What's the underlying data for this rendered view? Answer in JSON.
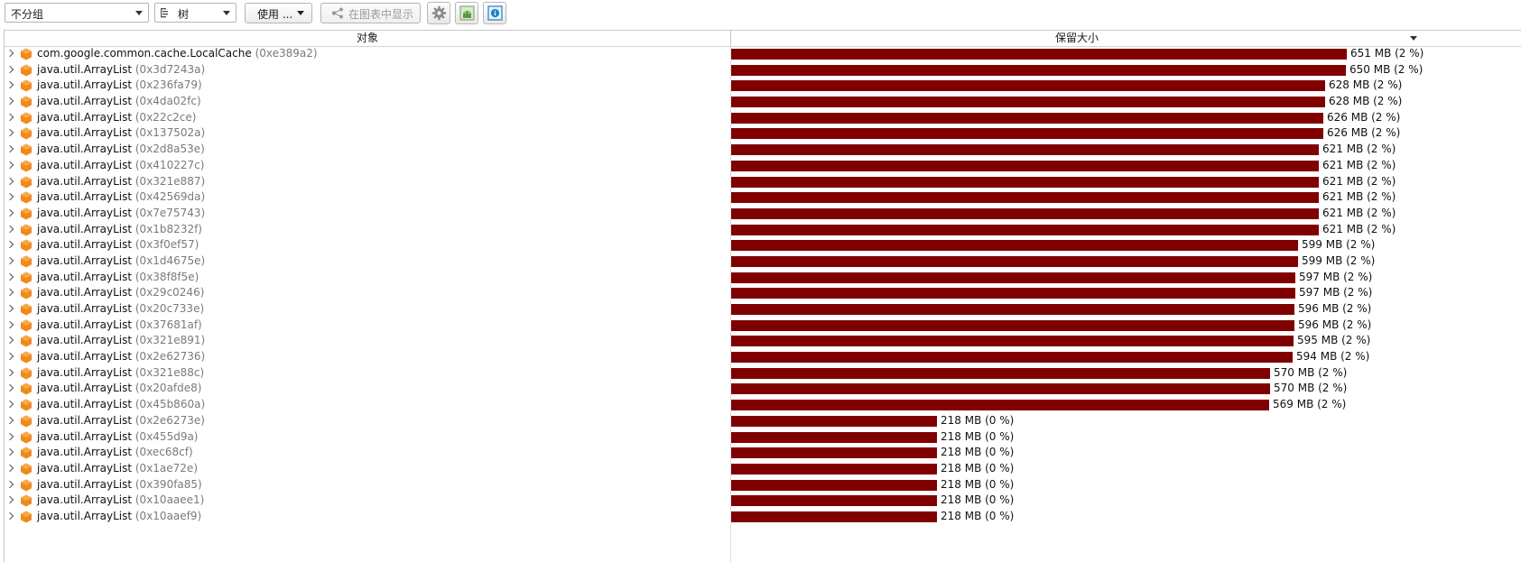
{
  "toolbar": {
    "grouping": "不分组",
    "view": "树",
    "usage": "使用 ...",
    "show_in_graph": "在图表中显示",
    "settings_icon": "gear-icon",
    "android_icon": "android-icon",
    "info_icon": "info-icon"
  },
  "table": {
    "col_object": "对象",
    "col_retained": "保留大小",
    "max_mb": 651,
    "rows": [
      {
        "cls": "com.google.common.cache.LocalCache",
        "addr": "(0xe389a2)",
        "mb": 651,
        "size": "651 MB (2 %)"
      },
      {
        "cls": "java.util.ArrayList",
        "addr": "(0x3d7243a)",
        "mb": 650,
        "size": "650 MB (2 %)"
      },
      {
        "cls": "java.util.ArrayList",
        "addr": "(0x236fa79)",
        "mb": 628,
        "size": "628 MB (2 %)"
      },
      {
        "cls": "java.util.ArrayList",
        "addr": "(0x4da02fc)",
        "mb": 628,
        "size": "628 MB (2 %)"
      },
      {
        "cls": "java.util.ArrayList",
        "addr": "(0x22c2ce)",
        "mb": 626,
        "size": "626 MB (2 %)"
      },
      {
        "cls": "java.util.ArrayList",
        "addr": "(0x137502a)",
        "mb": 626,
        "size": "626 MB (2 %)"
      },
      {
        "cls": "java.util.ArrayList",
        "addr": "(0x2d8a53e)",
        "mb": 621,
        "size": "621 MB (2 %)"
      },
      {
        "cls": "java.util.ArrayList",
        "addr": "(0x410227c)",
        "mb": 621,
        "size": "621 MB (2 %)"
      },
      {
        "cls": "java.util.ArrayList",
        "addr": "(0x321e887)",
        "mb": 621,
        "size": "621 MB (2 %)"
      },
      {
        "cls": "java.util.ArrayList",
        "addr": "(0x42569da)",
        "mb": 621,
        "size": "621 MB (2 %)"
      },
      {
        "cls": "java.util.ArrayList",
        "addr": "(0x7e75743)",
        "mb": 621,
        "size": "621 MB (2 %)"
      },
      {
        "cls": "java.util.ArrayList",
        "addr": "(0x1b8232f)",
        "mb": 621,
        "size": "621 MB (2 %)"
      },
      {
        "cls": "java.util.ArrayList",
        "addr": "(0x3f0ef57)",
        "mb": 599,
        "size": "599 MB (2 %)"
      },
      {
        "cls": "java.util.ArrayList",
        "addr": "(0x1d4675e)",
        "mb": 599,
        "size": "599 MB (2 %)"
      },
      {
        "cls": "java.util.ArrayList",
        "addr": "(0x38f8f5e)",
        "mb": 597,
        "size": "597 MB (2 %)"
      },
      {
        "cls": "java.util.ArrayList",
        "addr": "(0x29c0246)",
        "mb": 597,
        "size": "597 MB (2 %)"
      },
      {
        "cls": "java.util.ArrayList",
        "addr": "(0x20c733e)",
        "mb": 596,
        "size": "596 MB (2 %)"
      },
      {
        "cls": "java.util.ArrayList",
        "addr": "(0x37681af)",
        "mb": 596,
        "size": "596 MB (2 %)"
      },
      {
        "cls": "java.util.ArrayList",
        "addr": "(0x321e891)",
        "mb": 595,
        "size": "595 MB (2 %)"
      },
      {
        "cls": "java.util.ArrayList",
        "addr": "(0x2e62736)",
        "mb": 594,
        "size": "594 MB (2 %)"
      },
      {
        "cls": "java.util.ArrayList",
        "addr": "(0x321e88c)",
        "mb": 570,
        "size": "570 MB (2 %)"
      },
      {
        "cls": "java.util.ArrayList",
        "addr": "(0x20afde8)",
        "mb": 570,
        "size": "570 MB (2 %)"
      },
      {
        "cls": "java.util.ArrayList",
        "addr": "(0x45b860a)",
        "mb": 569,
        "size": "569 MB (2 %)"
      },
      {
        "cls": "java.util.ArrayList",
        "addr": "(0x2e6273e)",
        "mb": 218,
        "size": "218 MB (0 %)"
      },
      {
        "cls": "java.util.ArrayList",
        "addr": "(0x455d9a)",
        "mb": 218,
        "size": "218 MB (0 %)"
      },
      {
        "cls": "java.util.ArrayList",
        "addr": "(0xec68cf)",
        "mb": 218,
        "size": "218 MB (0 %)"
      },
      {
        "cls": "java.util.ArrayList",
        "addr": "(0x1ae72e)",
        "mb": 218,
        "size": "218 MB (0 %)"
      },
      {
        "cls": "java.util.ArrayList",
        "addr": "(0x390fa85)",
        "mb": 218,
        "size": "218 MB (0 %)"
      },
      {
        "cls": "java.util.ArrayList",
        "addr": "(0x10aaee1)",
        "mb": 218,
        "size": "218 MB (0 %)"
      },
      {
        "cls": "java.util.ArrayList",
        "addr": "(0x10aaef9)",
        "mb": 218,
        "size": "218 MB (0 %)"
      }
    ]
  },
  "colors": {
    "bar": "#800000",
    "object_icon": "#f08a1c",
    "address_text": "#7a7a7a"
  }
}
